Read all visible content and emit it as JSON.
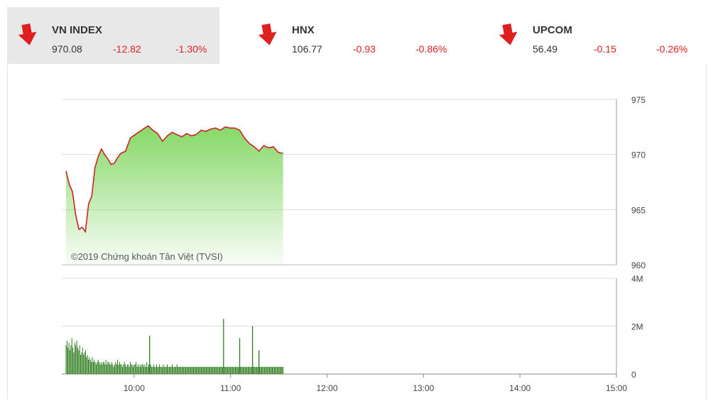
{
  "indices": [
    {
      "name": "VN INDEX",
      "value": "970.08",
      "change": "-12.82",
      "pct": "-1.30%",
      "active": true
    },
    {
      "name": "HNX",
      "value": "106.77",
      "change": "-0.93",
      "pct": "-0.86%",
      "active": false
    },
    {
      "name": "UPCOM",
      "value": "56.49",
      "change": "-0.15",
      "pct": "-0.26%",
      "active": false
    }
  ],
  "colors": {
    "down": "#e02020",
    "line": "#cc2222",
    "fill_top": "#7fd65f",
    "volume": "#2e7d1f",
    "grid": "#dddddd"
  },
  "chart_data": {
    "type": "line",
    "watermark": "©2019 Chứng khoán Tân Việt (TVSI)",
    "ylim": [
      960,
      975
    ],
    "y_ticks": [
      "975",
      "970",
      "965",
      "960"
    ],
    "x_ticks": [
      "10:00",
      "11:00",
      "12:00",
      "13:00",
      "14:00",
      "15:00"
    ],
    "xlim": [
      "09:15",
      "15:00"
    ],
    "grid": true,
    "price": {
      "x": [
        "09:15",
        "09:17",
        "09:19",
        "09:21",
        "09:23",
        "09:25",
        "09:27",
        "09:29",
        "09:31",
        "09:33",
        "09:35",
        "09:37",
        "09:39",
        "09:41",
        "09:43",
        "09:45",
        "09:47",
        "09:49",
        "09:52",
        "09:55",
        "09:58",
        "10:00",
        "10:03",
        "10:06",
        "10:09",
        "10:12",
        "10:15",
        "10:18",
        "10:21",
        "10:24",
        "10:27",
        "10:30",
        "10:33",
        "10:36",
        "10:39",
        "10:42",
        "10:45",
        "10:48",
        "10:51",
        "10:54",
        "10:57",
        "11:00",
        "11:03",
        "11:06",
        "11:09",
        "11:12",
        "11:15",
        "11:18",
        "11:21",
        "11:24",
        "11:27",
        "11:30"
      ],
      "y": [
        968.5,
        967.3,
        966.6,
        964.5,
        963.2,
        963.4,
        963.0,
        965.5,
        966.2,
        968.8,
        969.8,
        970.5,
        970.0,
        969.6,
        969.1,
        969.2,
        969.7,
        970.1,
        970.3,
        971.5,
        971.8,
        972.0,
        972.3,
        972.6,
        972.2,
        971.9,
        971.2,
        971.7,
        972.0,
        971.8,
        971.6,
        971.9,
        971.7,
        971.8,
        972.2,
        972.1,
        972.3,
        972.4,
        972.2,
        972.5,
        972.4,
        972.4,
        972.2,
        971.5,
        971.0,
        970.7,
        970.3,
        970.8,
        970.6,
        970.7,
        970.2,
        970.1
      ]
    },
    "volume": {
      "ylim": [
        0,
        4
      ],
      "y_ticks": [
        "4M",
        "2M",
        "0"
      ],
      "values_m": [
        1.2,
        1.4,
        1.1,
        1.3,
        1.0,
        1.2,
        1.5,
        1.1,
        0.9,
        1.3,
        1.2,
        1.4,
        1.1,
        1.0,
        1.2,
        0.8,
        0.9,
        1.1,
        0.8,
        0.9,
        1.0,
        0.7,
        0.8,
        0.6,
        0.7,
        0.6,
        0.5,
        0.7,
        0.5,
        0.6,
        0.5,
        0.4,
        0.5,
        0.6,
        0.5,
        0.4,
        0.5,
        0.4,
        0.5,
        0.5,
        0.4,
        0.6,
        0.4,
        0.5,
        0.5,
        0.4,
        0.4,
        0.5,
        0.4,
        0.3,
        0.4,
        0.5,
        0.4,
        0.6,
        0.4,
        0.5,
        0.4,
        0.4,
        0.3,
        0.4,
        0.5,
        0.4,
        0.3,
        0.4,
        0.4,
        0.3,
        0.5,
        0.4,
        0.4,
        0.3,
        0.4,
        0.4,
        0.5,
        0.3,
        0.4,
        0.3,
        0.4,
        0.3,
        0.4,
        0.4,
        0.3,
        0.4,
        0.3,
        0.5,
        0.3,
        0.4,
        0.3,
        0.4,
        0.3,
        0.3,
        0.4,
        0.3,
        0.3,
        0.4,
        0.3,
        0.3,
        0.4,
        0.3,
        0.3,
        0.3,
        0.4,
        0.3,
        0.3,
        0.3,
        0.4,
        0.3,
        0.3,
        0.3,
        0.3,
        0.4,
        0.3,
        0.3,
        0.3,
        0.3,
        0.4,
        0.3,
        0.3,
        0.3,
        0.3,
        0.3,
        0.3,
        0.3,
        0.3,
        0.3,
        0.3,
        0.3,
        0.3,
        0.3,
        0.3,
        0.3,
        0.3,
        0.3,
        0.3,
        0.3,
        0.3,
        0.3,
        0.3,
        0.3,
        0.3,
        0.3,
        0.3,
        0.3,
        0.3,
        0.3,
        0.3,
        0.3,
        0.3,
        0.3,
        0.3,
        0.3,
        0.3,
        0.3,
        0.3,
        0.3,
        0.3,
        0.3,
        0.3,
        0.3,
        0.3,
        0.3,
        0.3,
        0.3,
        0.3,
        0.3,
        0.3,
        0.3,
        0.3,
        0.3,
        0.3,
        0.3,
        0.3,
        0.3,
        0.3,
        0.3,
        0.3,
        0.3,
        0.3,
        0.3,
        0.3,
        0.3,
        0.3,
        0.3,
        0.3,
        0.3,
        0.3,
        0.3,
        0.3,
        0.3,
        0.3,
        0.3,
        0.3,
        0.3,
        0.3,
        0.3,
        0.3,
        0.3,
        0.3,
        0.3,
        0.3,
        0.3,
        0.3,
        0.3,
        0.3,
        0.3,
        0.3,
        0.3,
        0.3,
        0.3,
        0.3,
        0.3,
        0.3,
        0.3,
        0.3,
        0.3,
        0.3,
        0.3,
        0.3,
        0.3,
        0.3,
        0.3,
        0.3,
        0.3,
        0.3,
        0.3
      ],
      "spikes": [
        {
          "x": "10:07",
          "v": 1.6
        },
        {
          "x": "10:53",
          "v": 2.3
        },
        {
          "x": "11:03",
          "v": 1.5
        },
        {
          "x": "11:11",
          "v": 2.0
        },
        {
          "x": "11:15",
          "v": 1.0
        }
      ]
    }
  }
}
